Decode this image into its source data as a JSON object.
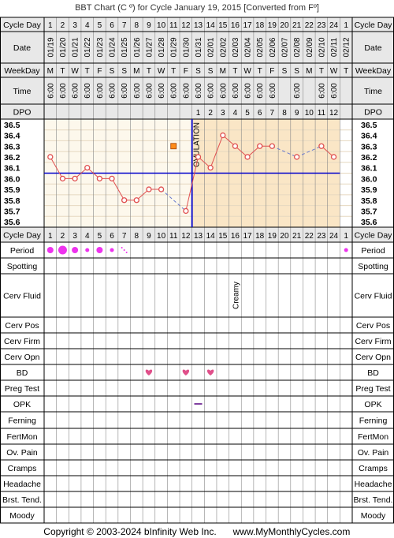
{
  "title": "BBT Chart (C º) for Cycle January 19, 2015  [Converted from Fº]",
  "footer": {
    "copyright": "Copyright © 2003-2024 bInfinity Web Inc.",
    "site": "www.MyMonthlyCycles.com"
  },
  "row_labels": {
    "cycle_day": "Cycle Day",
    "date": "Date",
    "weekday": "WeekDay",
    "time": "Time",
    "dpo": "DPO",
    "period": "Period",
    "spotting": "Spotting",
    "cerv_fluid": "Cerv Fluid",
    "cerv_pos": "Cerv Pos",
    "cerv_firm": "Cerv Firm",
    "cerv_opn": "Cerv Opn",
    "bd": "BD",
    "preg_test": "Preg Test",
    "opk": "OPK",
    "ferning": "Ferning",
    "fertmon": "FertMon",
    "ov_pain": "Ov. Pain",
    "cramps": "Cramps",
    "headache": "Headache",
    "brst_tend": "Brst. Tend.",
    "moody": "Moody"
  },
  "columns": {
    "cycle_days": [
      "1",
      "2",
      "3",
      "4",
      "5",
      "6",
      "7",
      "8",
      "9",
      "10",
      "11",
      "12",
      "13",
      "14",
      "15",
      "16",
      "17",
      "18",
      "19",
      "20",
      "21",
      "22",
      "23",
      "24",
      "1"
    ],
    "dates": [
      "01/19",
      "01/20",
      "01/21",
      "01/22",
      "01/23",
      "01/24",
      "01/25",
      "01/26",
      "01/27",
      "01/28",
      "01/29",
      "01/30",
      "01/31",
      "02/01",
      "02/02",
      "02/03",
      "02/04",
      "02/05",
      "02/06",
      "02/07",
      "02/08",
      "02/09",
      "02/10",
      "02/11",
      "02/12"
    ],
    "weekdays": [
      "M",
      "T",
      "W",
      "T",
      "F",
      "S",
      "S",
      "M",
      "T",
      "W",
      "T",
      "F",
      "S",
      "S",
      "M",
      "T",
      "W",
      "T",
      "F",
      "S",
      "S",
      "M",
      "T",
      "W",
      "T"
    ],
    "times": [
      "6:00",
      "6:00",
      "6:00",
      "6:00",
      "6:00",
      "6:00",
      "6:00",
      "6:00",
      "6:00",
      "6:00",
      "6:00",
      "6:00",
      "6:00",
      "6:00",
      "6:00",
      "6:00",
      "6:00",
      "6:00",
      "6:00",
      "",
      "6:00",
      "",
      "6:00",
      "6:00",
      ""
    ],
    "dpo": [
      "",
      "",
      "",
      "",
      "",
      "",
      "",
      "",
      "",
      "",
      "",
      "",
      "1",
      "2",
      "3",
      "4",
      "5",
      "6",
      "7",
      "8",
      "9",
      "10",
      "11",
      "12",
      ""
    ]
  },
  "ovulation_label": "OVULATION",
  "cerv_fluid_entries": [
    {
      "day_index": 15,
      "text": "Creamy"
    }
  ],
  "period_dots": [
    {
      "day_index": 0,
      "size": "medium"
    },
    {
      "day_index": 1,
      "size": "large"
    },
    {
      "day_index": 2,
      "size": "medium"
    },
    {
      "day_index": 3,
      "size": "small"
    },
    {
      "day_index": 4,
      "size": "medium"
    },
    {
      "day_index": 5,
      "size": "small"
    },
    {
      "day_index": 6,
      "size": "spotting"
    },
    {
      "day_index": 24,
      "size": "small"
    }
  ],
  "bd_days": [
    8,
    11,
    13
  ],
  "opk_days": [
    12
  ],
  "colors": {
    "temp_line": "#e05050",
    "coverline": "#0000cc",
    "ovulation": "#0000cc",
    "pre_ov_bg": "#fdf8ec",
    "post_ov_bg": "#fae6c6",
    "period": "#ee33ee",
    "bd_heart": "#e0508a",
    "opk": "#8040a0",
    "marker": "#ff8c1a",
    "header_bg": "#e8e8e8",
    "grid": "#000000"
  },
  "chart_data": {
    "type": "line",
    "x": [
      "1",
      "2",
      "3",
      "4",
      "5",
      "6",
      "7",
      "8",
      "9",
      "10",
      "11",
      "12",
      "13",
      "14",
      "15",
      "16",
      "17",
      "18",
      "19",
      "20",
      "21",
      "22",
      "23",
      "24",
      "1"
    ],
    "temperatures": [
      36.2,
      36.0,
      36.0,
      36.1,
      36.0,
      36.0,
      35.8,
      35.8,
      35.9,
      35.9,
      null,
      35.7,
      36.2,
      36.1,
      36.4,
      36.3,
      36.2,
      36.3,
      36.3,
      null,
      36.2,
      null,
      36.3,
      36.2,
      null
    ],
    "y_ticks": [
      "36.5",
      "36.4",
      "36.3",
      "36.2",
      "36.1",
      "36.0",
      "35.9",
      "35.8",
      "35.7",
      "35.6"
    ],
    "ylim": [
      35.6,
      36.5
    ],
    "coverline": 36.05,
    "ovulation_day_index": 11,
    "flag_marker": {
      "day_index": 10,
      "value": 36.3
    },
    "grid": true
  }
}
